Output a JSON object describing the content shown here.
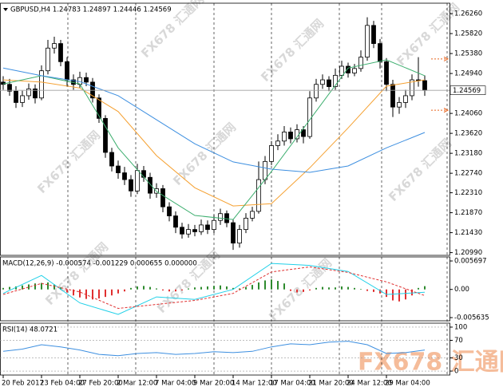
{
  "watermark": "FX678 汇通网",
  "chart_data": [
    {
      "type": "candlestick",
      "title": "GBPUSD,H4  1.24783 1.24897 1.24446 1.24569",
      "up_color": "#ffffff",
      "down_color": "#000000",
      "open": [
        1.2475,
        1.247,
        1.2455,
        1.243,
        1.2445,
        1.246,
        1.244,
        1.25,
        1.255,
        1.256,
        1.252,
        1.248,
        1.247,
        1.2485,
        1.2475,
        1.244,
        1.2395,
        1.232,
        1.229,
        1.2275,
        1.226,
        1.2235,
        1.228,
        1.2265,
        1.223,
        1.224,
        1.22,
        1.218,
        1.2155,
        1.214,
        1.215,
        1.2145,
        1.216,
        1.215,
        1.217,
        1.2185,
        1.2165,
        1.212,
        1.215,
        1.2175,
        1.219,
        1.226,
        1.23,
        1.2335,
        1.2345,
        1.2365,
        1.235,
        1.237,
        1.2355,
        1.244,
        1.247,
        1.248,
        1.2465,
        1.249,
        1.251,
        1.2495,
        1.2505,
        1.253,
        1.26,
        1.256,
        1.252,
        1.247,
        1.242,
        1.243,
        1.2445,
        1.248,
        1.24783
      ],
      "high": [
        1.2488,
        1.2482,
        1.2466,
        1.2456,
        1.2472,
        1.247,
        1.2512,
        1.2568,
        1.2575,
        1.2568,
        1.253,
        1.2492,
        1.2498,
        1.2496,
        1.2484,
        1.2448,
        1.2402,
        1.233,
        1.2302,
        1.2288,
        1.227,
        1.2295,
        1.229,
        1.2275,
        1.2252,
        1.2248,
        1.221,
        1.219,
        1.2165,
        1.2162,
        1.216,
        1.2172,
        1.217,
        1.2182,
        1.2196,
        1.2192,
        1.2172,
        1.216,
        1.2186,
        1.22,
        1.23,
        1.2312,
        1.2345,
        1.236,
        1.2378,
        1.2375,
        1.2382,
        1.2378,
        1.2455,
        1.2482,
        1.2492,
        1.2488,
        1.2505,
        1.2522,
        1.2518,
        1.2515,
        1.2545,
        1.2618,
        1.261,
        1.257,
        1.2528,
        1.248,
        1.2442,
        1.2458,
        1.2492,
        1.253,
        1.24897
      ],
      "low": [
        1.2458,
        1.2445,
        1.2418,
        1.242,
        1.2436,
        1.2428,
        1.2435,
        1.2492,
        1.2538,
        1.251,
        1.2465,
        1.2458,
        1.2462,
        1.2466,
        1.243,
        1.2385,
        1.2308,
        1.2278,
        1.2262,
        1.2248,
        1.2222,
        1.2228,
        1.2255,
        1.2218,
        1.222,
        1.2188,
        1.2168,
        1.2142,
        1.213,
        1.2132,
        1.2135,
        1.2138,
        1.214,
        1.2142,
        1.216,
        1.2155,
        1.2105,
        1.211,
        1.2142,
        1.2168,
        1.2185,
        1.225,
        1.2292,
        1.2325,
        1.2335,
        1.234,
        1.2342,
        1.234,
        1.235,
        1.2432,
        1.246,
        1.2455,
        1.2458,
        1.2482,
        1.2485,
        1.2488,
        1.2498,
        1.2522,
        1.255,
        1.2505,
        1.2455,
        1.2398,
        1.2405,
        1.2418,
        1.2435,
        1.2465,
        1.24446
      ],
      "close": [
        1.247,
        1.2455,
        1.243,
        1.2445,
        1.246,
        1.244,
        1.25,
        1.255,
        1.256,
        1.252,
        1.248,
        1.247,
        1.2485,
        1.2475,
        1.244,
        1.2395,
        1.232,
        1.229,
        1.2275,
        1.226,
        1.2235,
        1.228,
        1.2265,
        1.223,
        1.224,
        1.22,
        1.218,
        1.2155,
        1.214,
        1.215,
        1.2145,
        1.216,
        1.215,
        1.217,
        1.2185,
        1.2165,
        1.212,
        1.215,
        1.2175,
        1.219,
        1.226,
        1.23,
        1.2335,
        1.2345,
        1.2365,
        1.235,
        1.237,
        1.2355,
        1.244,
        1.247,
        1.248,
        1.2465,
        1.249,
        1.251,
        1.2495,
        1.2505,
        1.253,
        1.26,
        1.256,
        1.252,
        1.247,
        1.242,
        1.243,
        1.2445,
        1.248,
        1.24783,
        1.24569
      ],
      "overlays": [
        {
          "color": "#f5a030",
          "x": [
            0,
            6,
            12,
            18,
            24,
            30,
            36,
            42,
            48,
            54,
            60,
            66
          ],
          "values": [
            1.248,
            1.2475,
            1.2462,
            1.241,
            1.2313,
            1.2242,
            1.2202,
            1.2207,
            1.2286,
            1.2374,
            1.2466,
            1.248
          ]
        },
        {
          "color": "#3cae6e",
          "x": [
            0,
            6,
            12,
            18,
            24,
            30,
            36,
            42,
            48,
            54,
            60,
            66
          ],
          "values": [
            1.2471,
            1.2489,
            1.2471,
            1.233,
            1.2234,
            1.2181,
            1.2172,
            1.2278,
            1.2392,
            1.2506,
            1.2524,
            1.2489
          ]
        },
        {
          "color": "#3d8fe0",
          "x": [
            0,
            6,
            12,
            18,
            24,
            30,
            36,
            42,
            48,
            54,
            60,
            66
          ],
          "values": [
            1.2506,
            1.2489,
            1.2476,
            1.2445,
            1.2392,
            1.2339,
            1.2299,
            1.2283,
            1.2276,
            1.229,
            1.233,
            1.2364
          ]
        }
      ],
      "levels": [
        1.2526,
        1.2413
      ],
      "level_color": "#e8641e",
      "ylim": [
        1.2093,
        1.2649
      ],
      "yticks": [
        {
          "value": 1.2626,
          "label": "1.26260"
        },
        {
          "value": 1.2582,
          "label": "1.25820"
        },
        {
          "value": 1.2538,
          "label": "1.25380"
        },
        {
          "value": 1.2494,
          "label": "1.24940"
        },
        {
          "value": 1.2406,
          "label": "1.24060"
        },
        {
          "value": 1.2362,
          "label": "1.23620"
        },
        {
          "value": 1.2318,
          "label": "1.23180"
        },
        {
          "value": 1.2274,
          "label": "1.22740"
        },
        {
          "value": 1.2231,
          "label": "1.22310"
        },
        {
          "value": 1.2187,
          "label": "1.21870"
        },
        {
          "value": 1.2143,
          "label": "1.21430"
        },
        {
          "value": 1.2099,
          "label": "1.20990"
        }
      ],
      "x_labels": [
        "20 Feb 2017",
        "23 Feb 04:00",
        "27 Feb 20:00",
        "2 Mar 12:00",
        "7 Mar 04:00",
        "9 Mar 20:00",
        "14 Mar 12:00",
        "17 Mar 04:00",
        "21 Mar 20:00",
        "24 Mar 12:00",
        "29 Mar 04:00"
      ]
    },
    {
      "type": "macd",
      "title": "MACD(12,26,9) -0.000574 -0.001229 0.000655 0.000000",
      "up_color": "#2e8b2e",
      "down_color": "#e03030",
      "values": [
        0.0003,
        0.0005,
        0.0006,
        0.0008,
        0.001,
        0.0012,
        0.0013,
        0.0014,
        0.001,
        0.0004,
        -0.0006,
        -0.0012,
        -0.0016,
        -0.0019,
        -0.002,
        -0.0018,
        -0.0015,
        -0.0012,
        -0.0008,
        -0.0004,
        0.0003,
        0.0006,
        0.0007,
        0.0005,
        0.0002,
        -0.0002,
        -0.0004,
        -0.0004,
        -0.0002,
        0.0002,
        0.0004,
        0.0005,
        0.0006,
        0.0007,
        0.0008,
        0.0006,
        0.0003,
        0.0002,
        0.0005,
        0.0009,
        0.0014,
        0.0018,
        0.002,
        0.0017,
        0.0012,
        -0.0003,
        -0.0006,
        -0.0005,
        -0.0002,
        0.0003,
        0.0005,
        0.0004,
        0.0004,
        0.0006,
        0.0005,
        0.0003,
        0.0001,
        -0.0003,
        -0.0005,
        -0.0008,
        -0.0015,
        -0.0022,
        -0.0024,
        -0.002,
        -0.0012,
        0.0003,
        0.000655
      ],
      "series": [
        {
          "color": "#20d0e8",
          "style": "solid",
          "x": [
            0,
            6,
            12,
            18,
            24,
            30,
            36,
            42,
            48,
            54,
            60,
            66
          ],
          "values": [
            -0.0008,
            0.0028,
            -0.0027,
            -0.005,
            -0.0015,
            -0.002,
            0.0,
            0.0052,
            0.0048,
            0.0036,
            -0.001,
            -0.000574
          ]
        },
        {
          "color": "#e03030",
          "style": "dashed",
          "x": [
            0,
            6,
            12,
            18,
            24,
            30,
            36,
            42,
            48,
            54,
            60,
            66
          ],
          "values": [
            -0.001,
            0.0012,
            -0.0005,
            -0.0038,
            -0.003,
            -0.0022,
            -0.0008,
            0.0035,
            0.0045,
            0.0034,
            0.0015,
            -0.001229
          ]
        }
      ],
      "ylim": [
        -0.00627,
        0.0065
      ],
      "yticks": [
        0.005697,
        {
          "value": 0,
          "label": "0.00"
        },
        -0.005635
      ]
    },
    {
      "type": "line",
      "title": "RSI(14) 48.0721",
      "series": [
        {
          "color": "#3d8fe0",
          "style": "solid",
          "x": [
            0,
            3,
            6,
            9,
            12,
            15,
            18,
            21,
            24,
            27,
            30,
            33,
            36,
            39,
            42,
            45,
            48,
            51,
            54,
            57,
            60,
            63,
            66
          ],
          "values": [
            45,
            50,
            60,
            55,
            48,
            38,
            35,
            40,
            42,
            38,
            40,
            44,
            42,
            45,
            55,
            62,
            60,
            66,
            68,
            60,
            40,
            42,
            48.0721
          ]
        }
      ],
      "ylim": [
        -9,
        109
      ],
      "yticks": [
        100,
        70,
        30,
        0
      ],
      "grid": true
    }
  ]
}
